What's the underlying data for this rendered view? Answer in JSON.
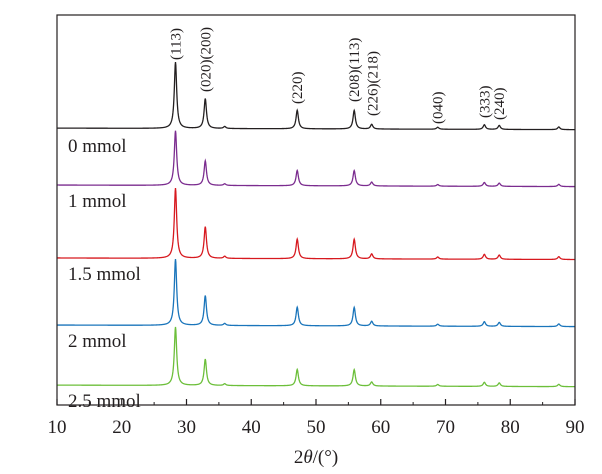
{
  "chart_data": {
    "type": "line",
    "title": "",
    "xlabel": "2θ/(°)",
    "xlabel_parts": {
      "prefix": "2",
      "var": "θ",
      "suffix": "/(°)"
    },
    "ylabel": "",
    "xlim": [
      10,
      90
    ],
    "ylim": [
      0,
      100
    ],
    "xticks": [
      10,
      20,
      30,
      40,
      50,
      60,
      70,
      80,
      90
    ],
    "grid": false,
    "peak_positions": [
      28.3,
      32.9,
      35.9,
      47.1,
      55.9,
      58.6,
      68.8,
      76.0,
      78.3,
      87.5
    ],
    "peak_relative_intensity": [
      1.0,
      0.45,
      0.03,
      0.28,
      0.28,
      0.07,
      0.03,
      0.07,
      0.06,
      0.04
    ],
    "peak_labels": [
      {
        "x": 28.3,
        "text": "(113)"
      },
      {
        "x": 32.9,
        "text": "(020)(200)"
      },
      {
        "x": 47.1,
        "text": "(220)"
      },
      {
        "x": 55.9,
        "text": "(208)(113)"
      },
      {
        "x": 58.7,
        "text": "(226)(218)"
      },
      {
        "x": 68.8,
        "text": "(040)"
      },
      {
        "x": 76.0,
        "text": "(333)"
      },
      {
        "x": 78.3,
        "text": "(240)"
      }
    ],
    "series": [
      {
        "name": "0 mmol",
        "color": "#231f20",
        "baseline": 71,
        "main_peak": 17
      },
      {
        "name": "1 mmol",
        "color": "#7b2c8f",
        "baseline": 56.4,
        "main_peak": 14
      },
      {
        "name": "1.5 mmol",
        "color": "#d7191f",
        "baseline": 37.7,
        "main_peak": 18
      },
      {
        "name": "2 mmol",
        "color": "#1a75bb",
        "baseline": 20.5,
        "main_peak": 17
      },
      {
        "name": "2.5 mmol",
        "color": "#6cbf3a",
        "baseline": 5.1,
        "main_peak": 15
      }
    ]
  }
}
